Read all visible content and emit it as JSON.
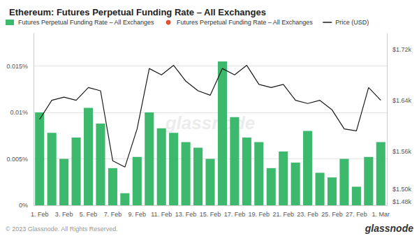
{
  "chart_data": {
    "type": "bar",
    "title": "Ethereum: Futures Perpetual Funding Rate – All Exchanges",
    "categories": [
      "1. Feb",
      null,
      "3. Feb",
      null,
      "5. Feb",
      null,
      "7. Feb",
      null,
      "9. Feb",
      null,
      "11. Feb",
      null,
      "13. Feb",
      null,
      "15. Feb",
      null,
      "17. Feb",
      null,
      "19. Feb",
      null,
      "21. Feb",
      null,
      "23. Feb",
      null,
      "25. Feb",
      null,
      "27. Feb",
      null,
      "1. Mar"
    ],
    "series": [
      {
        "name": "Futures Perpetual Funding Rate – All Exchanges",
        "type": "bar",
        "color": "#3db96e",
        "axis": "y",
        "values": [
          0.01,
          0.0078,
          0.005,
          0.0073,
          0.0105,
          0.0088,
          0.004,
          0.0013,
          0.0052,
          0.01,
          0.0083,
          0.0078,
          0.0068,
          0.0062,
          0.005,
          0.0155,
          0.0095,
          0.0073,
          0.0068,
          0.004,
          0.0058,
          0.0046,
          0.008,
          0.0035,
          0.003,
          0.005,
          0.002,
          0.0052,
          0.0068
        ]
      },
      {
        "name": "Futures Perpetual Funding Rate – All Exchanges",
        "type": "scatter",
        "color": "#e05030",
        "marker": "circle",
        "axis": "y",
        "values": [
          null,
          null,
          null,
          null,
          null,
          null,
          null,
          null,
          null,
          null,
          null,
          null,
          null,
          null,
          null,
          null,
          null,
          null,
          null,
          null,
          null,
          null,
          null,
          null,
          null,
          null,
          null,
          null,
          null
        ]
      },
      {
        "name": "Price (USD)",
        "type": "line",
        "color": "#1a1a1a",
        "axis": "y2",
        "values": [
          1610,
          1640,
          1645,
          1640,
          1660,
          1655,
          1545,
          1535,
          1595,
          1690,
          1680,
          1695,
          1670,
          1655,
          1648,
          1690,
          1680,
          1695,
          1665,
          1660,
          1665,
          1640,
          1635,
          1640,
          1625,
          1595,
          1592,
          1660,
          1640
        ]
      }
    ],
    "ylim": [
      0,
      0.0185
    ],
    "yticks": [
      {
        "value": 0,
        "label": "0%"
      },
      {
        "value": 0.005,
        "label": "0.005%"
      },
      {
        "value": 0.01,
        "label": "0.01%"
      },
      {
        "value": 0.015,
        "label": "0.015%"
      }
    ],
    "y2lim": [
      1475,
      1745
    ],
    "y2ticks": [
      {
        "value": 1480,
        "label": "$1.48k"
      },
      {
        "value": 1500,
        "label": "$1.50k"
      },
      {
        "value": 1560,
        "label": "$1.56k"
      },
      {
        "value": 1640,
        "label": "$1.64k"
      },
      {
        "value": 1720,
        "label": "$1.72k"
      }
    ],
    "grid": true,
    "legend": "upper left",
    "annotations": [
      "glassnode",
      "© 2023 Glassnode. All Rights Reserved.",
      "glassnode"
    ]
  }
}
